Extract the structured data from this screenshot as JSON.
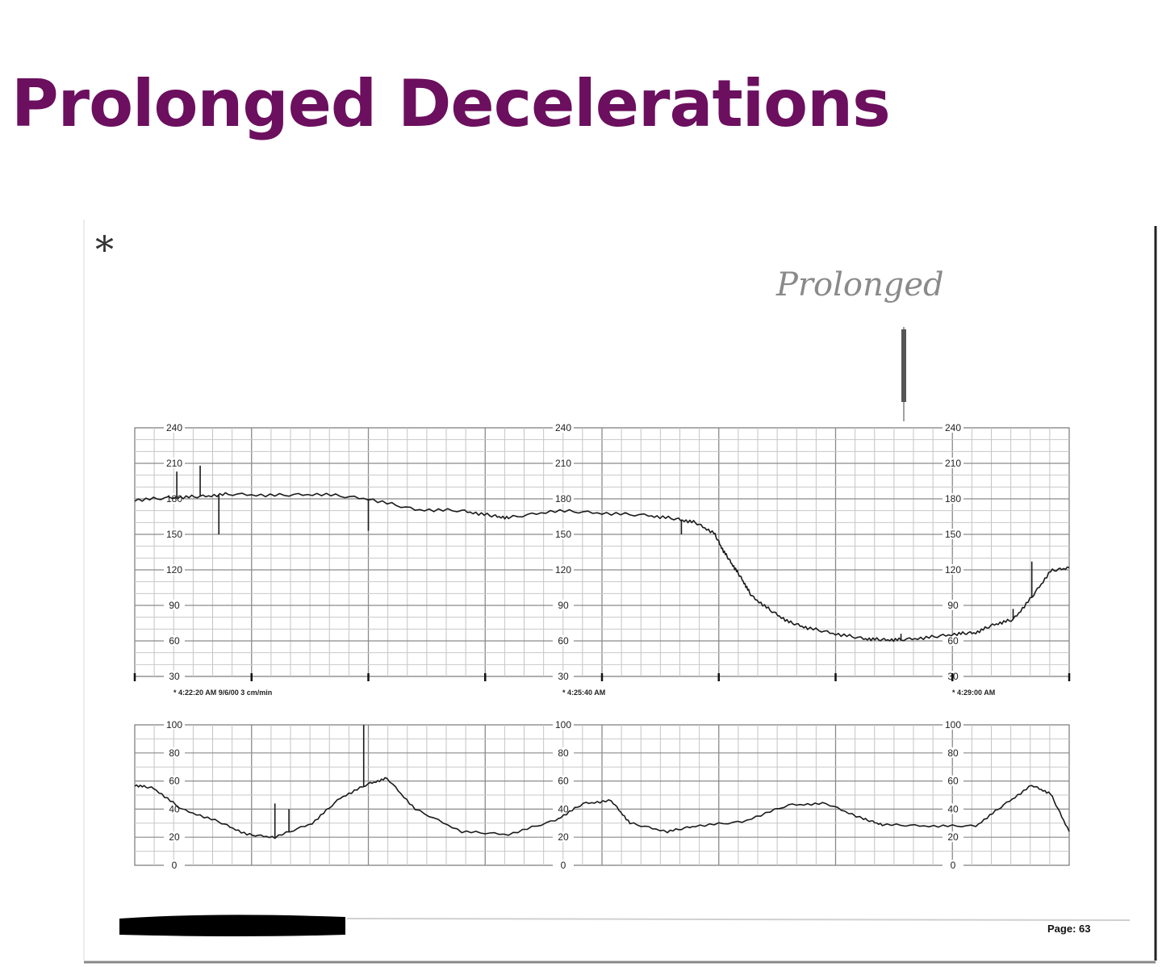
{
  "slide": {
    "title": "Prolonged Decelerations",
    "accent_color": "#6b0f5e"
  },
  "strip": {
    "handwritten_note": "Prolonged",
    "asterisk_mark": "*",
    "page_label": "Page: 63",
    "redaction": "black-marker-bar"
  },
  "chart_data": [
    {
      "type": "line",
      "name": "fetal-heart-rate",
      "ylim": [
        30,
        240
      ],
      "yticks": [
        30,
        60,
        90,
        120,
        150,
        180,
        210,
        240
      ],
      "tick_panels": 3,
      "time_labels": [
        "* 4:22:20 AM  9/6/00  3 cm/min",
        "* 4:25:40 AM",
        "* 4:29:00 AM"
      ],
      "x": [
        0,
        0.04,
        0.07,
        0.1,
        0.15,
        0.2,
        0.25,
        0.3,
        0.35,
        0.38,
        0.4,
        0.45,
        0.5,
        0.55,
        0.58,
        0.6,
        0.62,
        0.63,
        0.64,
        0.65,
        0.66,
        0.68,
        0.7,
        0.72,
        0.75,
        0.78,
        0.8,
        0.82,
        0.85,
        0.88,
        0.9,
        0.92,
        0.94,
        0.96,
        0.98,
        1.0
      ],
      "y": [
        179,
        181,
        182,
        184,
        183,
        184,
        180,
        171,
        170,
        166,
        164,
        170,
        168,
        166,
        163,
        160,
        151,
        136,
        124,
        112,
        98,
        86,
        76,
        71,
        66,
        62,
        61,
        61,
        63,
        66,
        67,
        74,
        78,
        97,
        119,
        122
      ],
      "spikes": [
        {
          "x": 0.045,
          "y": 203
        },
        {
          "x": 0.07,
          "y": 208
        },
        {
          "x": 0.09,
          "y": 150
        },
        {
          "x": 0.25,
          "y": 153
        },
        {
          "x": 0.585,
          "y": 150
        },
        {
          "x": 0.82,
          "y": 66
        },
        {
          "x": 0.94,
          "y": 87
        },
        {
          "x": 0.96,
          "y": 127
        }
      ]
    },
    {
      "type": "line",
      "name": "uterine-activity",
      "ylim": [
        0,
        100
      ],
      "yticks": [
        0,
        20,
        40,
        60,
        80,
        100
      ],
      "tick_panels": 3,
      "x": [
        0,
        0.02,
        0.05,
        0.09,
        0.12,
        0.15,
        0.19,
        0.22,
        0.25,
        0.27,
        0.3,
        0.35,
        0.4,
        0.45,
        0.48,
        0.51,
        0.53,
        0.57,
        0.6,
        0.65,
        0.7,
        0.74,
        0.78,
        0.8,
        0.85,
        0.9,
        0.93,
        0.96,
        0.98,
        1.0
      ],
      "y": [
        57,
        55,
        40,
        31,
        22,
        20,
        30,
        48,
        58,
        62,
        40,
        24,
        22,
        32,
        44,
        46,
        30,
        24,
        28,
        31,
        43,
        44,
        33,
        29,
        28,
        28,
        43,
        57,
        51,
        24
      ],
      "spikes": [
        {
          "x": 0.15,
          "y": 44
        },
        {
          "x": 0.165,
          "y": 40
        },
        {
          "x": 0.245,
          "y": 100
        }
      ]
    }
  ]
}
